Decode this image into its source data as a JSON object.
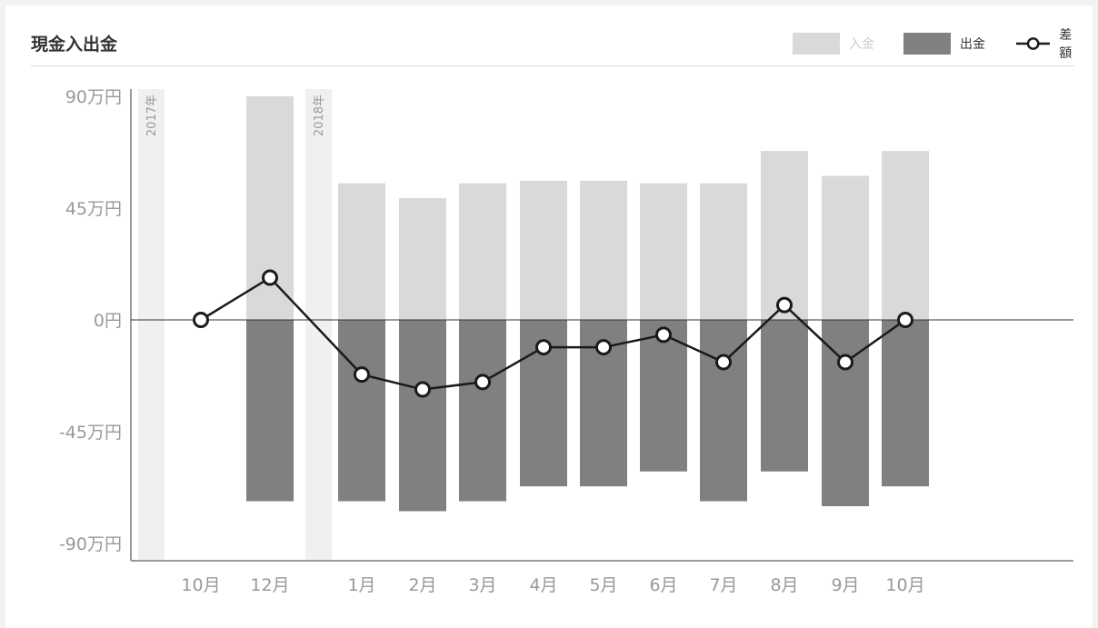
{
  "title": "現金入出金",
  "legend": {
    "deposit": "入金",
    "withdrawal": "出金",
    "difference": "差額"
  },
  "colors": {
    "deposit": "#d9d9d9",
    "withdrawal": "#808080",
    "line": "#1a1a1a",
    "year_band": "#f0f0f0",
    "axis": "#999999",
    "tick_text": "#999999"
  },
  "chart_data": {
    "type": "bar",
    "title": "",
    "xlabel": "",
    "ylabel": "",
    "categories": [
      "10月",
      "12月",
      "1月",
      "2月",
      "3月",
      "4月",
      "5月",
      "6月",
      "7月",
      "8月",
      "9月",
      "10月"
    ],
    "year_markers": [
      {
        "label": "2017年",
        "before_category": 0
      },
      {
        "label": "2018年",
        "before_category": 2
      }
    ],
    "y_ticks": [
      {
        "value": 90,
        "label": "90万円"
      },
      {
        "value": 45,
        "label": "45万円"
      },
      {
        "value": 0,
        "label": "0円"
      },
      {
        "value": -45,
        "label": "-45万円"
      },
      {
        "value": -90,
        "label": "-90万円"
      }
    ],
    "ylim": [
      -95,
      95
    ],
    "y_unit": "万円",
    "series": [
      {
        "name": "入金",
        "type": "bar",
        "values": [
          0,
          90,
          55,
          49,
          55,
          56,
          56,
          55,
          55,
          68,
          58,
          68
        ]
      },
      {
        "name": "出金",
        "type": "bar",
        "values": [
          0,
          -73,
          -73,
          -77,
          -73,
          -67,
          -67,
          -61,
          -73,
          -61,
          -75,
          -67
        ]
      },
      {
        "name": "差額",
        "type": "line",
        "values": [
          0,
          17,
          -22,
          -28,
          -25,
          -11,
          -11,
          -6,
          -17,
          6,
          -17,
          0
        ]
      }
    ],
    "grid": false,
    "legend_position": "top-right"
  }
}
